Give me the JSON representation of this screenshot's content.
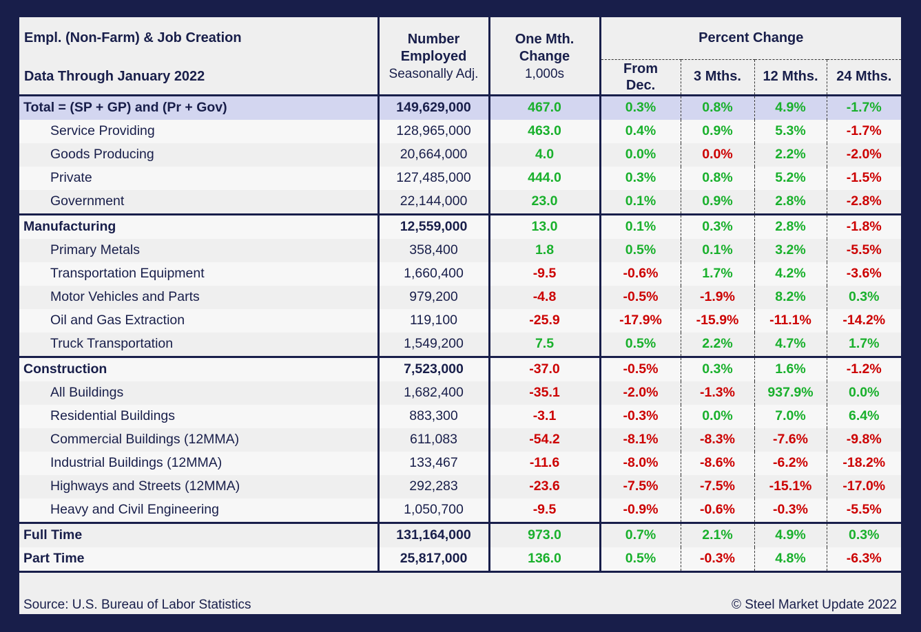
{
  "header": {
    "title": "Empl. (Non-Farm) & Job Creation",
    "subtitle": "Data Through January 2022",
    "col_number": [
      "Number",
      "Employed",
      "Seasonally Adj."
    ],
    "col_change": [
      "One Mth.",
      "Change",
      "1,000s"
    ],
    "percent_change": "Percent Change",
    "pct_cols": [
      [
        "From",
        "Dec."
      ],
      "3 Mths.",
      "12 Mths.",
      "24 Mths."
    ]
  },
  "colors": {
    "navy": "#181e4a",
    "positive": "#19b02c",
    "negative": "#cc0000",
    "section_bg": "#d3d6f0"
  },
  "chart_data": {
    "type": "table",
    "columns": [
      "",
      "Number Employed Seasonally Adj.",
      "One Mth. Change 1,000s",
      "From Dec.",
      "3 Mths.",
      "12 Mths.",
      "24 Mths."
    ],
    "rows": [
      {
        "label": "Total = (SP + GP) and (Pr + Gov)",
        "kind": "section",
        "number": "149,629,000",
        "change": "467.0",
        "pct": [
          "0.3%",
          "0.8%",
          "4.9%",
          "-1.7%"
        ],
        "colors": "gggggr"
      },
      {
        "label": "Service Providing",
        "kind": "item",
        "number": "128,965,000",
        "change": "463.0",
        "pct": [
          "0.4%",
          "0.9%",
          "5.3%",
          "-1.7%"
        ],
        "colors": "ggggr"
      },
      {
        "label": "Goods Producing",
        "kind": "item",
        "number": "20,664,000",
        "change": "4.0",
        "pct": [
          "0.0%",
          "0.0%",
          "2.2%",
          "-2.0%"
        ],
        "colors": "ggrgr"
      },
      {
        "label": "Private",
        "kind": "item",
        "number": "127,485,000",
        "change": "444.0",
        "pct": [
          "0.3%",
          "0.8%",
          "5.2%",
          "-1.5%"
        ],
        "colors": "ggggr"
      },
      {
        "label": "Government",
        "kind": "item",
        "number": "22,144,000",
        "change": "23.0",
        "pct": [
          "0.1%",
          "0.9%",
          "2.8%",
          "-2.8%"
        ],
        "colors": "ggggr"
      },
      {
        "label": "Manufacturing",
        "kind": "section",
        "number": "12,559,000",
        "change": "13.0",
        "pct": [
          "0.1%",
          "0.3%",
          "2.8%",
          "-1.8%"
        ],
        "colors": "ggggr"
      },
      {
        "label": "Primary Metals",
        "kind": "item",
        "number": "358,400",
        "change": "1.8",
        "pct": [
          "0.5%",
          "0.1%",
          "3.2%",
          "-5.5%"
        ],
        "colors": "ggggr"
      },
      {
        "label": "Transportation Equipment",
        "kind": "item",
        "number": "1,660,400",
        "change": "-9.5",
        "pct": [
          "-0.6%",
          "1.7%",
          "4.2%",
          "-3.6%"
        ],
        "colors": "rrggr"
      },
      {
        "label": "Motor Vehicles and Parts",
        "kind": "item",
        "number": "979,200",
        "change": "-4.8",
        "pct": [
          "-0.5%",
          "-1.9%",
          "8.2%",
          "0.3%"
        ],
        "colors": "rrrgg"
      },
      {
        "label": "Oil and Gas Extraction",
        "kind": "item",
        "number": "119,100",
        "change": "-25.9",
        "pct": [
          "-17.9%",
          "-15.9%",
          "-11.1%",
          "-14.2%"
        ],
        "colors": "rrrrr"
      },
      {
        "label": "Truck Transportation",
        "kind": "item",
        "number": "1,549,200",
        "change": "7.5",
        "pct": [
          "0.5%",
          "2.2%",
          "4.7%",
          "1.7%"
        ],
        "colors": "ggggg"
      },
      {
        "label": "Construction",
        "kind": "section",
        "number": "7,523,000",
        "change": "-37.0",
        "pct": [
          "-0.5%",
          "0.3%",
          "1.6%",
          "-1.2%"
        ],
        "colors": "rrggr"
      },
      {
        "label": "All Buildings",
        "kind": "item",
        "number": "1,682,400",
        "change": "-35.1",
        "pct": [
          "-2.0%",
          "-1.3%",
          "937.9%",
          "0.0%"
        ],
        "colors": "rrrgg"
      },
      {
        "label": "Residential Buildings",
        "kind": "item",
        "number": "883,300",
        "change": "-3.1",
        "pct": [
          "-0.3%",
          "0.0%",
          "7.0%",
          "6.4%"
        ],
        "colors": "rrggg"
      },
      {
        "label": "Commercial Buildings (12MMA)",
        "kind": "item",
        "number": "611,083",
        "change": "-54.2",
        "pct": [
          "-8.1%",
          "-8.3%",
          "-7.6%",
          "-9.8%"
        ],
        "colors": "rrrrr"
      },
      {
        "label": "Industrial Buildings (12MMA)",
        "kind": "item",
        "number": "133,467",
        "change": "-11.6",
        "pct": [
          "-8.0%",
          "-8.6%",
          "-6.2%",
          "-18.2%"
        ],
        "colors": "rrrrr"
      },
      {
        "label": "Highways and Streets (12MMA)",
        "kind": "item",
        "number": "292,283",
        "change": "-23.6",
        "pct": [
          "-7.5%",
          "-7.5%",
          "-15.1%",
          "-17.0%"
        ],
        "colors": "rrrrr"
      },
      {
        "label": "Heavy and Civil Engineering",
        "kind": "item",
        "number": "1,050,700",
        "change": "-9.5",
        "pct": [
          "-0.9%",
          "-0.6%",
          "-0.3%",
          "-5.5%"
        ],
        "colors": "rrrrr"
      },
      {
        "label": "Full Time",
        "kind": "total",
        "number": "131,164,000",
        "change": "973.0",
        "pct": [
          "0.7%",
          "2.1%",
          "4.9%",
          "0.3%"
        ],
        "colors": "ggggg"
      },
      {
        "label": "Part Time",
        "kind": "total",
        "number": "25,817,000",
        "change": "136.0",
        "pct": [
          "0.5%",
          "-0.3%",
          "4.8%",
          "-6.3%"
        ],
        "colors": "ggrgr"
      }
    ]
  },
  "footer": {
    "source": "Source: U.S. Bureau of Labor Statistics",
    "copyright": "© Steel Market Update 2022"
  }
}
